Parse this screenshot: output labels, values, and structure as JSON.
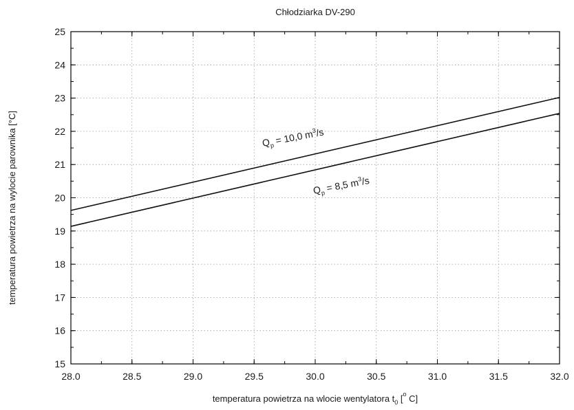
{
  "chart_data": {
    "type": "line",
    "title": "Chłodziarka DV-290",
    "xlabel": {
      "main": "temperatura powietrza na wlocie wentylatora t",
      "sub": "0",
      "bracket_open": " [",
      "degree": "o",
      "unit": " C]"
    },
    "ylabel": "temperatura powietrza na wylocie parownika [°C]",
    "xlim": [
      28.0,
      32.0
    ],
    "ylim": [
      15,
      25
    ],
    "x_ticks": [
      "28.0",
      "28.5",
      "29.0",
      "29.5",
      "30.0",
      "30.5",
      "31.0",
      "31.5",
      "32.0"
    ],
    "y_ticks": [
      "15",
      "16",
      "17",
      "18",
      "19",
      "20",
      "21",
      "22",
      "23",
      "24",
      "25"
    ],
    "grid": true,
    "series": [
      {
        "x": [
          28.0,
          32.0
        ],
        "y": [
          19.62,
          23.02
        ],
        "label": {
          "q": "Q",
          "sub": "p",
          "rest": " = 10,0 m",
          "sup": "3",
          "tail": "/s"
        }
      },
      {
        "x": [
          28.0,
          32.0
        ],
        "y": [
          19.14,
          22.54
        ],
        "label": {
          "q": "Q",
          "sub": "p",
          "rest": " = 8,5 m",
          "sup": "3",
          "tail": "/s"
        }
      }
    ]
  }
}
